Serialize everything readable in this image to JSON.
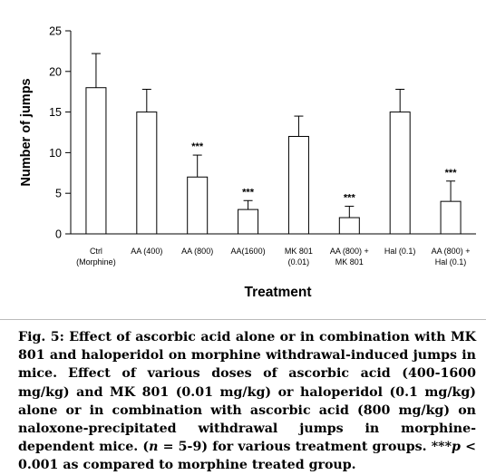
{
  "chart_data": {
    "type": "bar",
    "xlabel": "Treatment",
    "ylabel": "Number of jumps",
    "ylim": [
      0,
      25
    ],
    "yticks": [
      "0",
      "5",
      "10",
      "15",
      "20",
      "25"
    ],
    "ytick_values": [
      0,
      5,
      10,
      15,
      20,
      25
    ],
    "grid": false,
    "bar_fill": "#ffffff",
    "bar_stroke": "#000000",
    "categories": [
      [
        "Ctrl",
        "(Morphine)"
      ],
      [
        "AA (400)"
      ],
      [
        "AA (800)"
      ],
      [
        "AA(1600)"
      ],
      [
        "MK 801",
        "(0.01)"
      ],
      [
        "AA (800) +",
        "MK 801"
      ],
      [
        "Hal (0.1)"
      ],
      [
        "AA (800) +",
        "Hal (0.1)"
      ]
    ],
    "values": [
      18,
      15,
      7,
      3,
      12,
      2,
      15,
      4
    ],
    "errors": [
      4.2,
      2.8,
      2.7,
      1.1,
      2.5,
      1.4,
      2.8,
      2.5
    ],
    "annotations": [
      "",
      "",
      "***",
      "***",
      "",
      "***",
      "",
      "***"
    ]
  },
  "caption": {
    "title": "Fig. 5: Effect of ascorbic acid alone or in combination with MK 801 and haloperidol on morphine withdrawal-induced jumps in mice.",
    "body_pre": "Effect of various doses of ascorbic acid (400-1600 mg/kg) and MK 801 (0.01 mg/kg) or haloperidol (0.1 mg/kg) alone or in combination with ascorbic acid (800 mg/kg) on naloxone-precipitated withdrawal jumps in morphine-dependent mice. (",
    "n_symbol": "n",
    "body_mid": " = 5-9) for various treatment groups. ***",
    "p_symbol": "p",
    "body_post": " < 0.001 as compared to morphine treated group."
  }
}
